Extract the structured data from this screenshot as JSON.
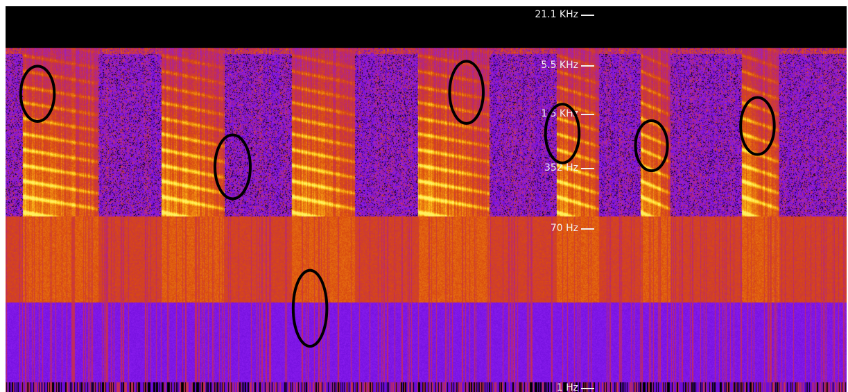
{
  "chart_data": {
    "type": "heatmap",
    "title": "",
    "xlabel": "",
    "ylabel": "",
    "y_scale": "log",
    "y_ticks": [
      {
        "label": "21.1  KHz",
        "hz": 21100
      },
      {
        "label": "5.5  KHz",
        "hz": 5500
      },
      {
        "label": "1.5  KHz",
        "hz": 1500
      },
      {
        "label": "352  Hz",
        "hz": 352
      },
      {
        "label": "70  Hz",
        "hz": 70
      },
      {
        "label": "1  Hz",
        "hz": 1
      }
    ],
    "colormap": [
      "#000000",
      "#5a00c8",
      "#8b1ef0",
      "#c02a60",
      "#d94a10",
      "#f08a10",
      "#ffd020",
      "#fff060"
    ],
    "spectral_bands": [
      {
        "hz_low": 0.2,
        "hz_high": 1.2,
        "kind": "striped"
      },
      {
        "hz_low": 1.2,
        "hz_high": 10,
        "kind": "purple"
      },
      {
        "hz_low": 10,
        "hz_high": 100,
        "kind": "orange"
      }
    ],
    "syllables": [
      {
        "start": 0.02,
        "end": 0.11
      },
      {
        "start": 0.185,
        "end": 0.26
      },
      {
        "start": 0.34,
        "end": 0.415
      },
      {
        "start": 0.49,
        "end": 0.575
      },
      {
        "start": 0.655,
        "end": 0.705
      },
      {
        "start": 0.755,
        "end": 0.79
      },
      {
        "start": 0.875,
        "end": 0.92
      }
    ],
    "annotations": [
      {
        "shape": "ellipse",
        "t": 0.038,
        "hz_center": 2600,
        "t_radius": 0.02,
        "log_hz_radius": 0.32
      },
      {
        "shape": "ellipse",
        "t": 0.27,
        "hz_center": 370,
        "t_radius": 0.021,
        "log_hz_radius": 0.37
      },
      {
        "shape": "ellipse",
        "t": 0.362,
        "hz_center": 8.5,
        "t_radius": 0.02,
        "log_hz_radius": 0.44
      },
      {
        "shape": "ellipse",
        "t": 0.548,
        "hz_center": 2700,
        "t_radius": 0.02,
        "log_hz_radius": 0.36
      },
      {
        "shape": "ellipse",
        "t": 0.662,
        "hz_center": 900,
        "t_radius": 0.02,
        "log_hz_radius": 0.34
      },
      {
        "shape": "ellipse",
        "t": 0.768,
        "hz_center": 650,
        "t_radius": 0.019,
        "log_hz_radius": 0.29
      },
      {
        "shape": "ellipse",
        "t": 0.894,
        "hz_center": 1100,
        "t_radius": 0.02,
        "log_hz_radius": 0.33
      }
    ]
  }
}
